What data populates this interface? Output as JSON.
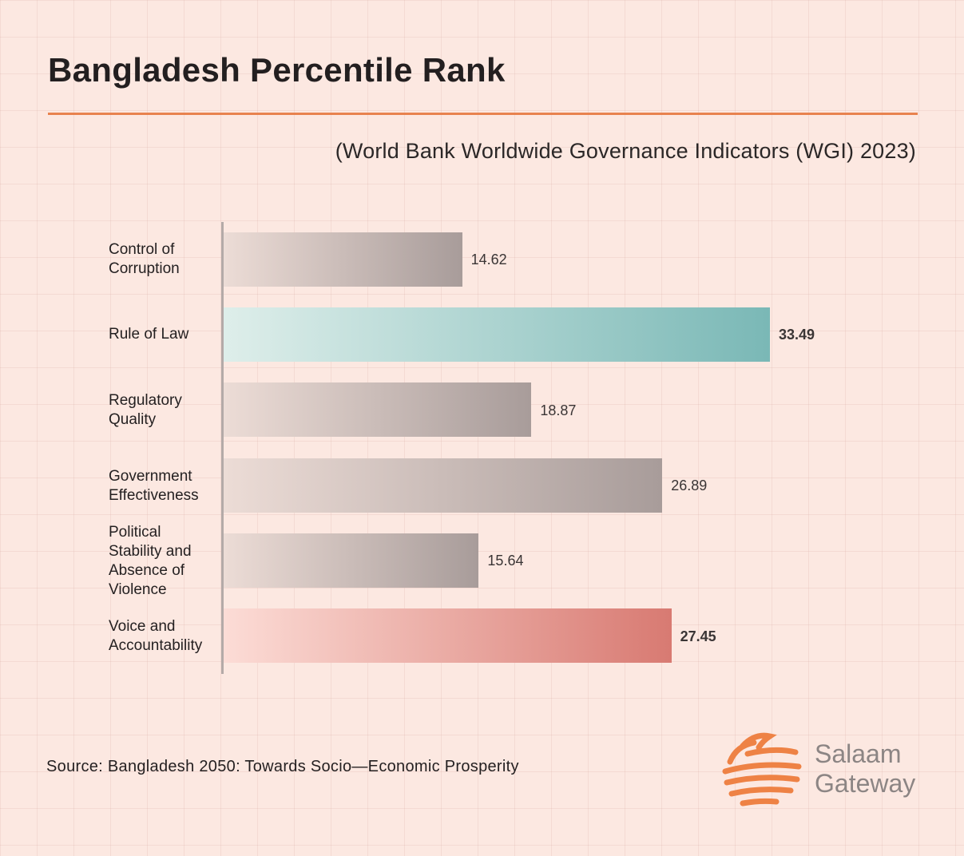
{
  "header": {
    "title": "Bangladesh Percentile Rank",
    "subtitle": "(World Bank Worldwide Governance Indicators (WGI) 2023)"
  },
  "chart_data": {
    "type": "bar",
    "orientation": "horizontal",
    "categories": [
      "Control of Corruption",
      "Rule of Law",
      "Regulatory Quality",
      "Government Effectiveness",
      "Political Stability and Absence of Violence",
      "Voice and Accountability"
    ],
    "values": [
      14.62,
      33.49,
      18.87,
      26.89,
      15.64,
      27.45
    ],
    "value_labels": [
      "14.62",
      "33.49",
      "18.87",
      "26.89",
      "15.64",
      "27.45"
    ],
    "title": "Bangladesh Percentile Rank",
    "subtitle": "(World Bank Worldwide Governance Indicators (WGI) 2023)",
    "xlabel": "",
    "ylabel": "",
    "grid": true,
    "highlight": {
      "Rule of Law": "#7ab8b6",
      "Voice and Accountability": "#d87a72"
    },
    "default_color": "#a89c9a"
  },
  "colors": {
    "background": "#fce8e1",
    "accent": "#e8824e",
    "neutral_bar": "#a89c9a",
    "teal_bar": "#7ab8b6",
    "red_bar": "#d87a72"
  },
  "footer": {
    "source": "Source: Bangladesh 2050: Towards Socio—Economic Prosperity"
  },
  "logo": {
    "icon": "salaam-gateway-logo-icon",
    "name_line1": "Salaam",
    "name_line2": "Gateway"
  }
}
